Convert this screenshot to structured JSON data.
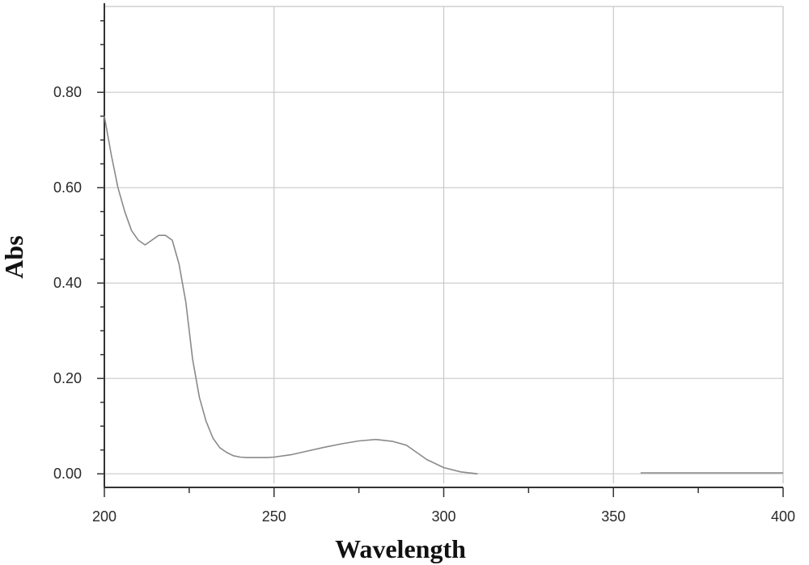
{
  "chart_data": {
    "type": "line",
    "title": "",
    "xlabel": "Wavelength",
    "ylabel": "Abs",
    "xlim": [
      200,
      400
    ],
    "ylim": [
      -0.02,
      0.98
    ],
    "xticks": [
      200,
      250,
      300,
      350,
      400
    ],
    "xtick_labels": [
      "200",
      "250",
      "300",
      "350",
      "400"
    ],
    "yticks": [
      0.0,
      0.2,
      0.4,
      0.6,
      0.8
    ],
    "ytick_labels": [
      "0.00",
      "0.20",
      "0.40",
      "0.60",
      "0.80"
    ],
    "grid": true,
    "legend": "none",
    "series": [
      {
        "color": "#8a8a8a",
        "x": [
          200,
          202,
          204,
          206,
          208,
          210,
          212,
          214,
          216,
          218,
          220,
          222,
          224,
          226,
          228,
          230,
          232,
          234,
          236,
          238,
          240,
          242,
          244,
          246,
          248,
          250,
          255,
          260,
          265,
          270,
          275,
          280,
          285,
          289,
          292,
          295,
          300,
          305,
          310
        ],
        "y": [
          0.75,
          0.67,
          0.6,
          0.55,
          0.51,
          0.49,
          0.48,
          0.49,
          0.5,
          0.5,
          0.49,
          0.44,
          0.36,
          0.24,
          0.16,
          0.11,
          0.075,
          0.055,
          0.045,
          0.038,
          0.035,
          0.034,
          0.034,
          0.034,
          0.034,
          0.035,
          0.04,
          0.048,
          0.056,
          0.063,
          0.069,
          0.072,
          0.068,
          0.06,
          0.045,
          0.03,
          0.013,
          0.004,
          0.0
        ]
      },
      {
        "color": "#8a8a8a",
        "x": [
          358,
          370,
          380,
          390,
          400
        ],
        "y": [
          0.002,
          0.002,
          0.002,
          0.002,
          0.002
        ]
      }
    ],
    "baseline": 0.0
  }
}
